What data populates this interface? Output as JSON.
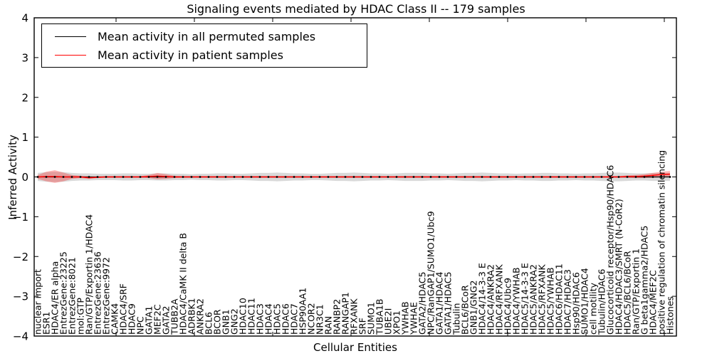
{
  "chart_data": {
    "type": "line",
    "title": "Signaling events mediated by HDAC Class II -- 179 samples",
    "xlabel": "Cellular Entities",
    "ylabel": "Inferred Activity",
    "ylim": [
      -4,
      4
    ],
    "yticks": [
      4,
      3,
      2,
      1,
      0,
      -1,
      -2,
      -3,
      -4
    ],
    "grid": false,
    "legend_position": "upper left",
    "categories": [
      "nuclear import",
      "ESR1",
      "HDAC4/ER alpha",
      "EntrezGene:23225",
      "EntrezGene:8021",
      "mol:GTP",
      "Ran/GTP/Exportin 1/HDAC4",
      "EntrezGene:23636",
      "EntrezGene:9972",
      "CAMK4",
      "HDAC4/SRF",
      "HDAC9",
      "NPC",
      "GATA1",
      "MEF2C",
      "GATA2",
      "TUBB2A",
      "HDAC4/CaMK II delta B",
      "ADRBK1",
      "ANKRA2",
      "BCL6",
      "BCOR",
      "GNB1",
      "GNG2",
      "HDAC10",
      "HDAC11",
      "HDAC3",
      "HDAC4",
      "HDAC5",
      "HDAC6",
      "HDAC7",
      "HSP90AA1",
      "NCOR2",
      "NR3C1",
      "RAN",
      "RANBP2",
      "RANGAP1",
      "RFXANK",
      "SRF",
      "SUMO1",
      "TUBA1B",
      "UBE2I",
      "XPO1",
      "YWHAB",
      "YWHAE",
      "GATA2/HDAC5",
      "NPC/RanGAP1/SUMO1/Ubc9",
      "GATA1/HDAC4",
      "GATA1/HDAC5",
      "Tubulin",
      "BCL6/BCoR",
      "GNB1/GNG2",
      "HDAC4/14-3-3 E",
      "HDAC4/ANKRA2",
      "HDAC4/RFXANK",
      "HDAC4/Ubc9",
      "HDAC4/YWHAB",
      "HDAC5/14-3-3 E",
      "HDAC5/ANKRA2",
      "HDAC5/RFXANK",
      "HDAC5/YWHAB",
      "HDAC6/HDAC11",
      "HDAC7/HDAC3",
      "Hsp90/HDAC6",
      "SUMO1/HDAC4",
      "cell motility",
      "Tubulin/HDAC6",
      "Glucocorticoid receptor/Hsp90/HDAC6",
      "HDAC4/HDAC3/SMRT (N-CoR2)",
      "HDAC5/BCL6/BCoR",
      "Ran/GTP/Exportin 1",
      "G beta1gamma2/HDAC5",
      "HDAC4/MEF2C",
      "positive regulation of chromatin silencing",
      "Histones"
    ],
    "series": [
      {
        "name": "Mean activity in all permuted samples",
        "color": "#000000",
        "band_color": "rgba(80,80,80,0.22)",
        "values": [
          0,
          0,
          0,
          0,
          0,
          0,
          0,
          0,
          0,
          0,
          0,
          0,
          0,
          0,
          0,
          0,
          0,
          0,
          0,
          0,
          0,
          0,
          0,
          0,
          0,
          0,
          0,
          0,
          0,
          0,
          0,
          0,
          0,
          0,
          0,
          0,
          0,
          0,
          0,
          0,
          0,
          0,
          0,
          0,
          0,
          0,
          0,
          0,
          0,
          0,
          0,
          0,
          0,
          0,
          0,
          0,
          0,
          0,
          0,
          0,
          0,
          0,
          0,
          0,
          0,
          0,
          0,
          0,
          0,
          0,
          0,
          0,
          0,
          0,
          0
        ],
        "band": [
          0.1,
          0.12,
          0.13,
          0.12,
          0.1,
          0.09,
          0.09,
          0.08,
          0.08,
          0.08,
          0.09,
          0.09,
          0.08,
          0.08,
          0.09,
          0.09,
          0.08,
          0.08,
          0.07,
          0.08,
          0.08,
          0.09,
          0.09,
          0.08,
          0.08,
          0.09,
          0.1,
          0.1,
          0.11,
          0.1,
          0.09,
          0.09,
          0.08,
          0.08,
          0.09,
          0.1,
          0.1,
          0.11,
          0.1,
          0.09,
          0.09,
          0.08,
          0.09,
          0.1,
          0.1,
          0.1,
          0.09,
          0.09,
          0.08,
          0.09,
          0.1,
          0.1,
          0.11,
          0.1,
          0.09,
          0.09,
          0.08,
          0.09,
          0.09,
          0.1,
          0.1,
          0.09,
          0.09,
          0.08,
          0.09,
          0.09,
          0.1,
          0.11,
          0.11,
          0.1,
          0.09,
          0.09,
          0.1,
          0.1,
          0.1
        ]
      },
      {
        "name": "Mean activity in patient samples",
        "color": "#ff0000",
        "band_color": "rgba(255,0,0,0.28)",
        "values": [
          0,
          0.01,
          0.01,
          0,
          0,
          0,
          -0.02,
          -0.01,
          0,
          0,
          0,
          0,
          0,
          0.01,
          0.02,
          0.01,
          0,
          0,
          0,
          0,
          0,
          0,
          0,
          0,
          0,
          0,
          0,
          0,
          0,
          0,
          0,
          0,
          0,
          0,
          0,
          0,
          0,
          0,
          0,
          0,
          0,
          0,
          0,
          0,
          0,
          0,
          0,
          0,
          0,
          0,
          0,
          0,
          0,
          0,
          0,
          0,
          0,
          0,
          0,
          0,
          0,
          0,
          0,
          0,
          0,
          0,
          0,
          0,
          0,
          0.01,
          0.01,
          0.02,
          0.04,
          0.06,
          0.07
        ],
        "band": [
          0.05,
          0.12,
          0.16,
          0.11,
          0.05,
          0.03,
          0.03,
          0.02,
          0.02,
          0.02,
          0.02,
          0.02,
          0.02,
          0.04,
          0.08,
          0.06,
          0.03,
          0.02,
          0.02,
          0.02,
          0.02,
          0.02,
          0.02,
          0.02,
          0.02,
          0.02,
          0.02,
          0.02,
          0.02,
          0.02,
          0.02,
          0.02,
          0.02,
          0.02,
          0.02,
          0.02,
          0.02,
          0.02,
          0.02,
          0.02,
          0.02,
          0.02,
          0.02,
          0.02,
          0.02,
          0.02,
          0.02,
          0.02,
          0.02,
          0.02,
          0.02,
          0.02,
          0.02,
          0.02,
          0.02,
          0.02,
          0.02,
          0.02,
          0.02,
          0.02,
          0.02,
          0.02,
          0.02,
          0.02,
          0.02,
          0.02,
          0.02,
          0.02,
          0.02,
          0.03,
          0.04,
          0.05,
          0.06,
          0.07,
          0.08
        ]
      }
    ]
  }
}
